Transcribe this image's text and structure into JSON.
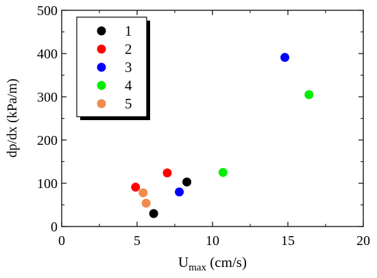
{
  "chart_data": {
    "type": "scatter",
    "title": "",
    "xlabel": "U",
    "xlabel_sub": "max",
    "xlabel_unit": " (cm/s)",
    "ylabel": "dp/dx  (kPa/m)",
    "xlim": [
      0,
      20
    ],
    "ylim": [
      0,
      500
    ],
    "xticks": [
      0,
      5,
      10,
      15,
      20
    ],
    "yticks": [
      0,
      100,
      200,
      300,
      400,
      500
    ],
    "grid": false,
    "legend_position": "top-left",
    "series": [
      {
        "name": "1",
        "color": "#000000",
        "points": [
          [
            6.1,
            30
          ],
          [
            8.3,
            103
          ]
        ]
      },
      {
        "name": "2",
        "color": "#ff0000",
        "points": [
          [
            4.9,
            91
          ],
          [
            7.0,
            124
          ]
        ]
      },
      {
        "name": "3",
        "color": "#0000ff",
        "points": [
          [
            7.8,
            80
          ],
          [
            14.8,
            391
          ]
        ]
      },
      {
        "name": "4",
        "color": "#00ee00",
        "points": [
          [
            10.7,
            125
          ],
          [
            16.4,
            305
          ]
        ]
      },
      {
        "name": "5",
        "color": "#f08c4c",
        "points": [
          [
            5.4,
            78
          ],
          [
            5.6,
            54
          ]
        ]
      }
    ]
  }
}
